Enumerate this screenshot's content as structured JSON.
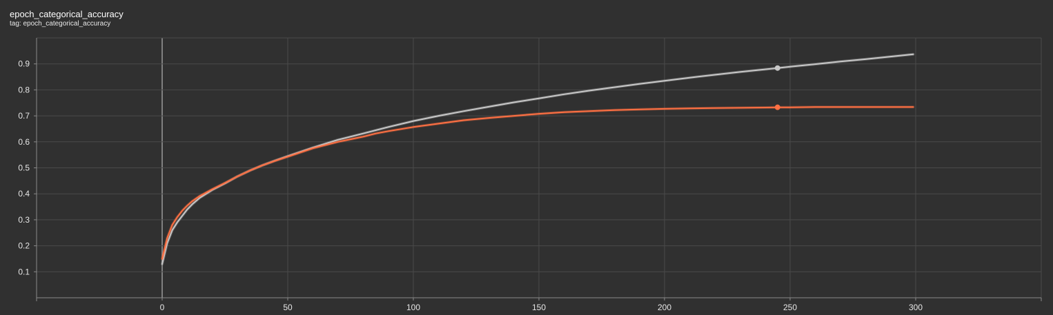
{
  "header": {
    "title": "epoch_categorical_accuracy",
    "tag_line": "tag: epoch_categorical_accuracy"
  },
  "colors": {
    "background": "#303030",
    "grid": "#4a4a4a",
    "axis": "#8a8a8a",
    "tick_text": "#e6e6e6",
    "train": "#c8c8c8",
    "validation": "#ff7043"
  },
  "chart_data": {
    "type": "line",
    "title": "epoch_categorical_accuracy",
    "xlim": [
      -50,
      350
    ],
    "ylim": [
      0,
      1.0
    ],
    "x_ticks": [
      0,
      50,
      100,
      150,
      200,
      250,
      300
    ],
    "y_ticks": [
      0.1,
      0.2,
      0.3,
      0.4,
      0.5,
      0.6,
      0.7,
      0.8,
      0.9
    ],
    "x_tick_labels": [
      "0",
      "50",
      "100",
      "150",
      "200",
      "250",
      "300"
    ],
    "y_tick_labels": [
      "0.1",
      "0.2",
      "0.3",
      "0.4",
      "0.5",
      "0.6",
      "0.7",
      "0.8",
      "0.9"
    ],
    "grid": true,
    "series": [
      {
        "key": "train",
        "color": "#c8c8c8",
        "x": [
          0,
          2,
          4,
          6,
          8,
          10,
          12,
          15,
          20,
          25,
          30,
          35,
          40,
          45,
          50,
          60,
          70,
          80,
          90,
          100,
          110,
          120,
          130,
          140,
          150,
          160,
          170,
          180,
          190,
          200,
          210,
          220,
          230,
          240,
          245,
          250,
          260,
          270,
          280,
          290,
          299
        ],
        "y": [
          0.13,
          0.21,
          0.26,
          0.29,
          0.315,
          0.34,
          0.36,
          0.385,
          0.415,
          0.44,
          0.467,
          0.49,
          0.51,
          0.528,
          0.545,
          0.578,
          0.608,
          0.632,
          0.657,
          0.68,
          0.7,
          0.718,
          0.735,
          0.752,
          0.767,
          0.783,
          0.797,
          0.81,
          0.823,
          0.835,
          0.847,
          0.858,
          0.869,
          0.879,
          0.884,
          0.889,
          0.899,
          0.909,
          0.918,
          0.928,
          0.937
        ],
        "marker": {
          "x": 245,
          "y": 0.884
        }
      },
      {
        "key": "validation",
        "color": "#ff7043",
        "x": [
          0,
          2,
          4,
          6,
          8,
          10,
          12,
          15,
          20,
          25,
          30,
          35,
          40,
          45,
          50,
          60,
          70,
          80,
          85,
          90,
          100,
          110,
          120,
          130,
          140,
          150,
          160,
          170,
          180,
          190,
          200,
          210,
          220,
          230,
          240,
          245,
          250,
          260,
          270,
          280,
          290,
          299
        ],
        "y": [
          0.15,
          0.23,
          0.28,
          0.31,
          0.335,
          0.355,
          0.372,
          0.392,
          0.418,
          0.442,
          0.467,
          0.49,
          0.51,
          0.527,
          0.543,
          0.575,
          0.6,
          0.62,
          0.632,
          0.641,
          0.657,
          0.67,
          0.683,
          0.692,
          0.7,
          0.708,
          0.714,
          0.718,
          0.722,
          0.725,
          0.727,
          0.729,
          0.73,
          0.731,
          0.732,
          0.733,
          0.733,
          0.734,
          0.734,
          0.734,
          0.734,
          0.734
        ],
        "marker": {
          "x": 245,
          "y": 0.733
        }
      }
    ]
  }
}
